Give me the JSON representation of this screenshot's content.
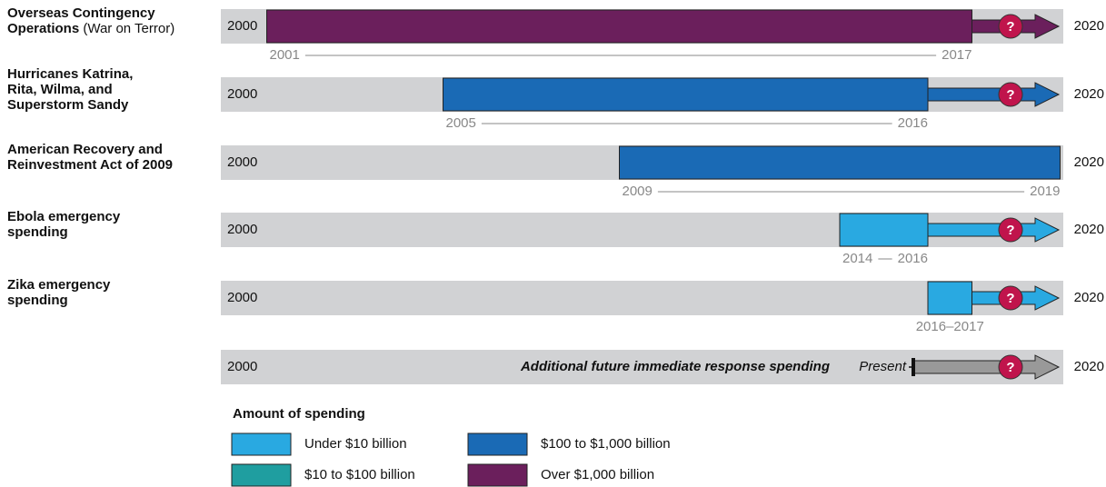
{
  "chart_data": {
    "type": "timeline",
    "xlim": [
      2000,
      2020
    ],
    "rows": [
      {
        "label_lines": [
          "Overseas Contingency",
          "Operations"
        ],
        "note": "(War on Terror)",
        "start": 2001,
        "end": 2017,
        "color": "#6b1f5c",
        "ongoing": true
      },
      {
        "label_lines": [
          "Hurricanes Katrina,",
          "Rita, Wilma, and",
          "Superstorm Sandy"
        ],
        "start": 2005,
        "end": 2016,
        "color": "#1a6ab5",
        "ongoing": true
      },
      {
        "label_lines": [
          "American Recovery and",
          "Reinvestment Act of 2009"
        ],
        "start": 2009,
        "end": 2019,
        "color": "#1a6ab5",
        "ongoing": false
      },
      {
        "label_lines": [
          "Ebola emergency",
          "spending"
        ],
        "start": 2014,
        "end": 2016,
        "color": "#29a9e1",
        "ongoing": true
      },
      {
        "label_lines": [
          "Zika emergency",
          "spending"
        ],
        "start": 2016,
        "end": 2017,
        "range_label": "2016–2017",
        "color": "#29a9e1",
        "ongoing": true
      }
    ],
    "future": {
      "label": "Additional future immediate response spending",
      "present_label": "Present",
      "color": "#999999"
    },
    "unknown_mark": "?",
    "legend": {
      "title": "Amount of spending",
      "items": [
        {
          "name": "Under $10 billion",
          "color": "#29a9e1"
        },
        {
          "name": "$10 to $100 billion",
          "color": "#1f9ea0"
        },
        {
          "name": "$100 to $1,000 billion",
          "color": "#1a6ab5"
        },
        {
          "name": "Over $1,000 billion",
          "color": "#6b1f5c"
        }
      ]
    }
  }
}
